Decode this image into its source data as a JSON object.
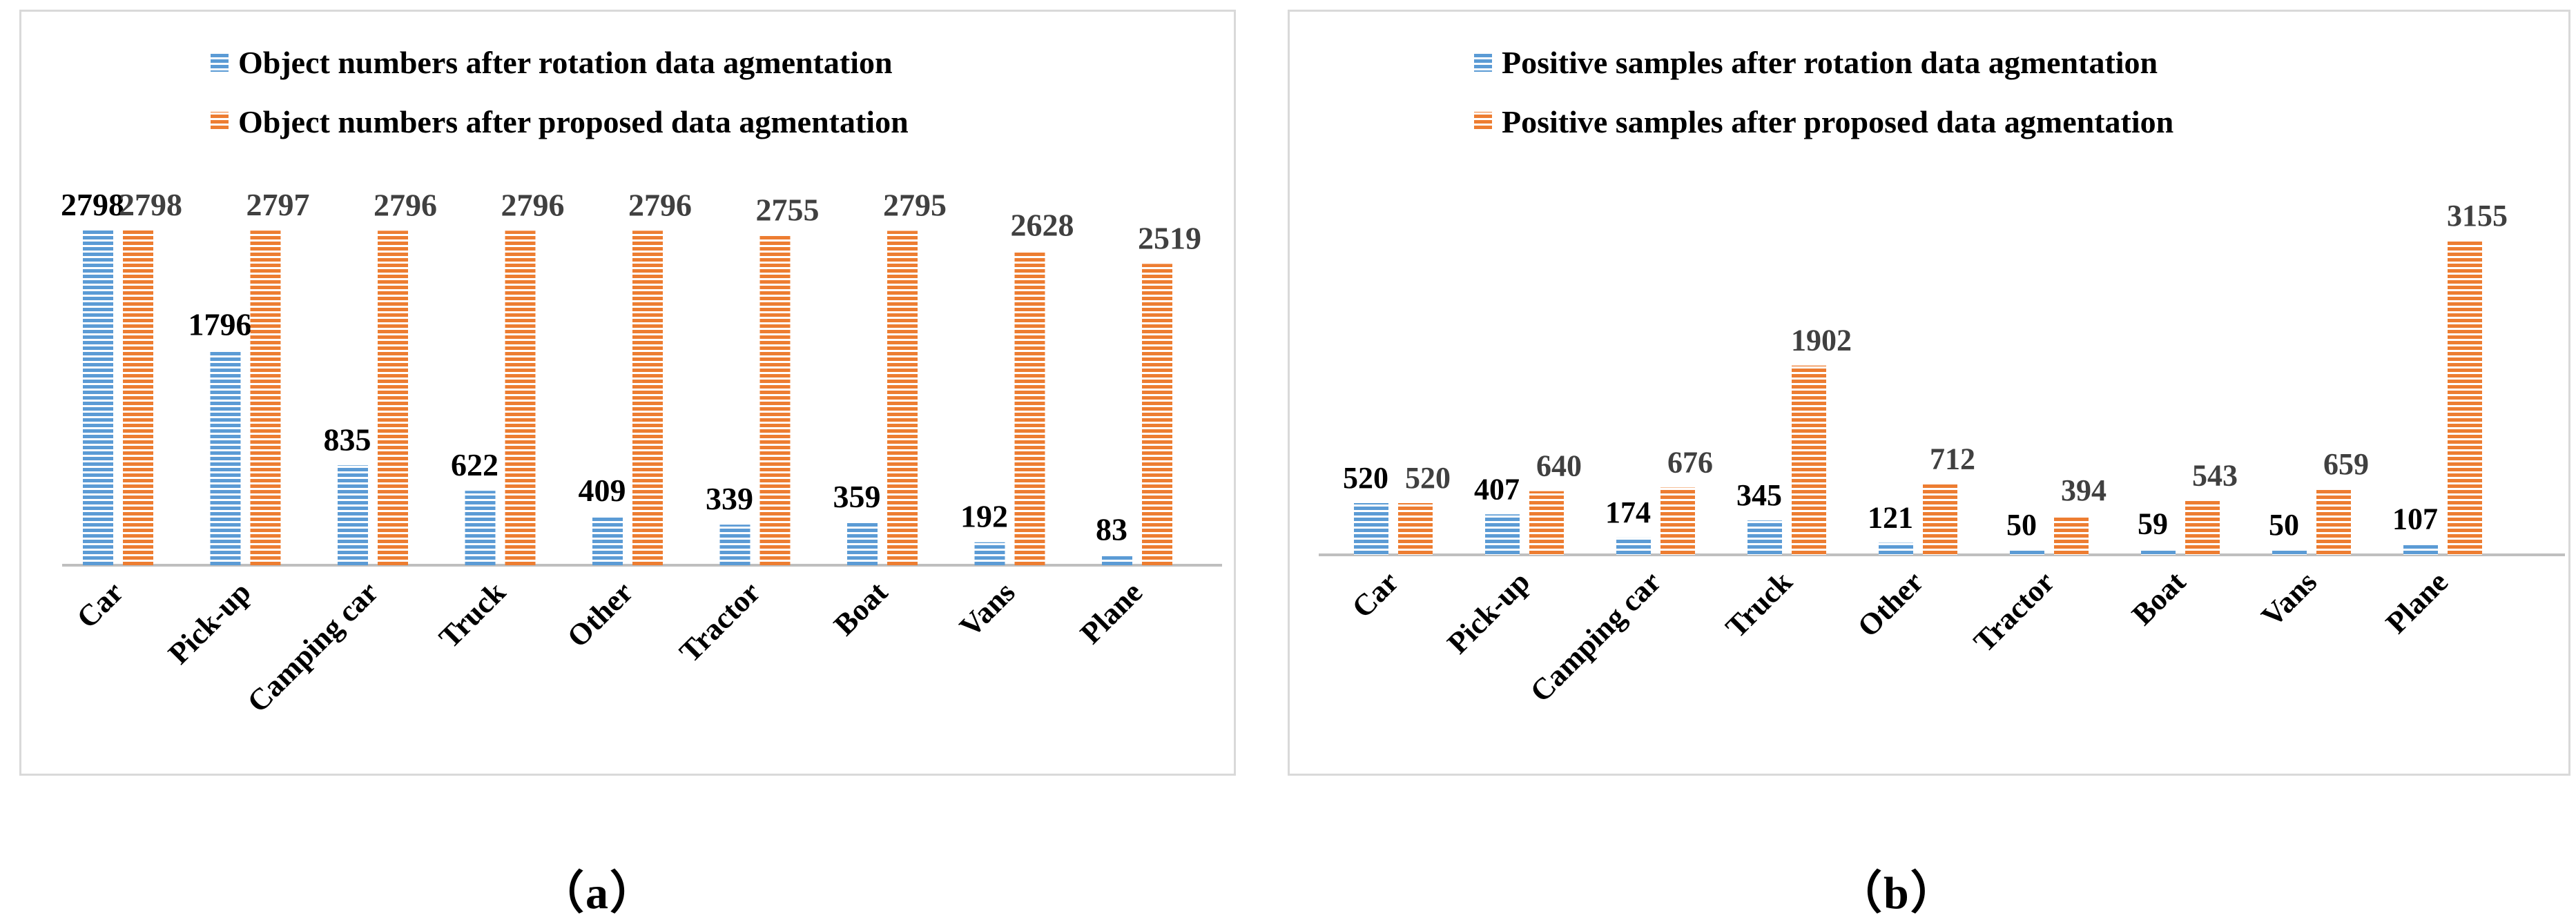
{
  "colors": {
    "series_blue": "#5b9bd5",
    "series_orange": "#ed7d31",
    "axis": "#bfbfbf",
    "label_dark": "#000000",
    "label_grey": "#404040"
  },
  "captions": {
    "a": "（a）",
    "b": "（b）"
  },
  "chart_data": [
    {
      "id": "a",
      "type": "bar",
      "title": "",
      "xlabel": "",
      "ylabel": "",
      "legend_position": "top",
      "categories": [
        "Car",
        "Pick-up",
        "Camping car",
        "Truck",
        "Other",
        "Tractor",
        "Boat",
        "Vans",
        "Plane"
      ],
      "series": [
        {
          "name": "Object numbers after rotation data agmentation",
          "color": "#5b9bd5",
          "values": [
            2798,
            1796,
            835,
            622,
            409,
            339,
            359,
            192,
            83
          ]
        },
        {
          "name": "Object numbers after proposed data agmentation",
          "color": "#ed7d31",
          "values": [
            2798,
            2797,
            2796,
            2796,
            2796,
            2755,
            2795,
            2628,
            2519
          ]
        }
      ],
      "ylim": [
        0,
        2798
      ],
      "grid": false
    },
    {
      "id": "b",
      "type": "bar",
      "title": "",
      "xlabel": "",
      "ylabel": "",
      "legend_position": "top",
      "categories": [
        "Car",
        "Pick-up",
        "Camping car",
        "Truck",
        "Other",
        "Tractor",
        "Boat",
        "Vans",
        "Plane"
      ],
      "series": [
        {
          "name": "Positive samples after rotation data agmentation",
          "color": "#5b9bd5",
          "values": [
            520,
            407,
            174,
            345,
            121,
            50,
            59,
            50,
            107
          ]
        },
        {
          "name": "Positive samples after proposed data agmentation",
          "color": "#ed7d31",
          "values": [
            520,
            640,
            676,
            1902,
            712,
            394,
            543,
            659,
            3155
          ]
        }
      ],
      "ylim": [
        0,
        3155
      ],
      "grid": false
    }
  ]
}
